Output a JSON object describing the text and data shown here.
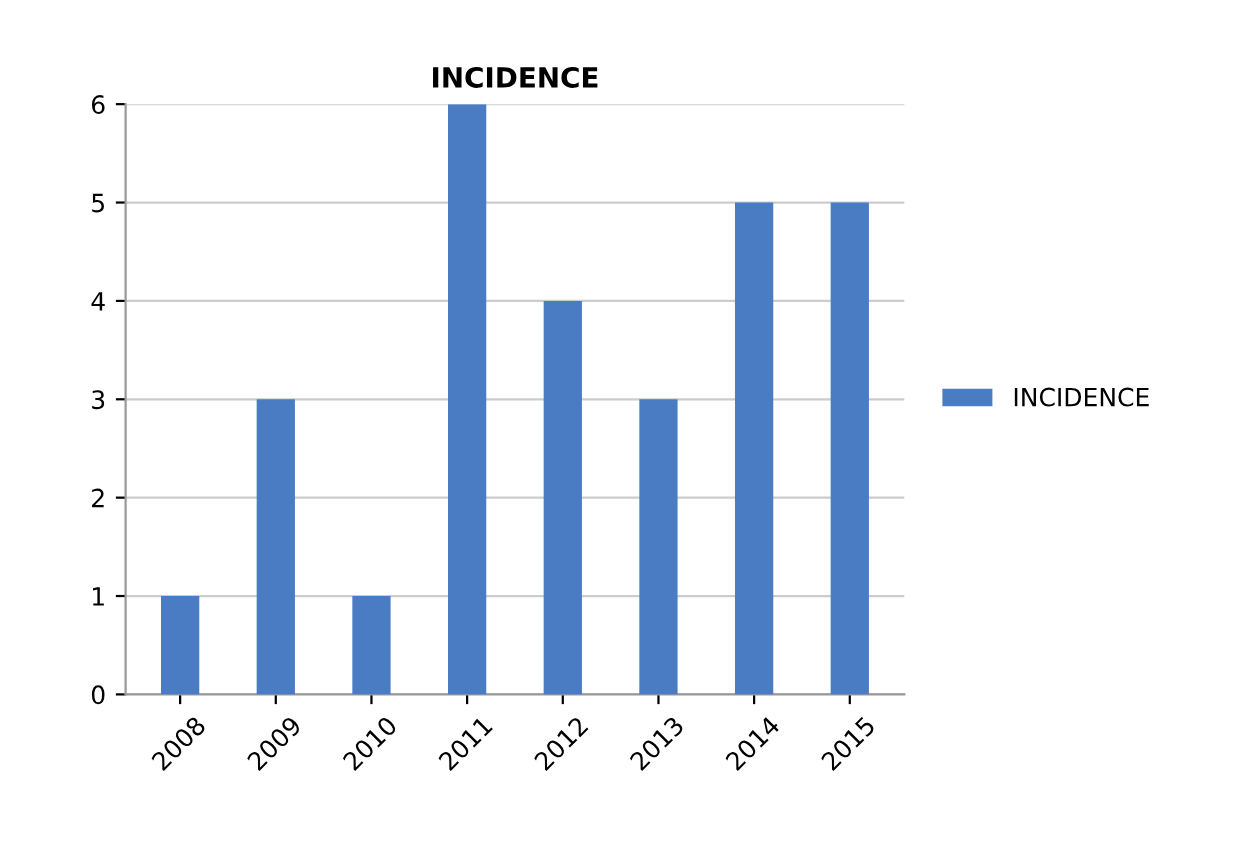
{
  "chart_data": {
    "type": "bar",
    "title": "INCIDENCE",
    "categories": [
      "2008",
      "2009",
      "2010",
      "2011",
      "2012",
      "2013",
      "2014",
      "2015"
    ],
    "series": [
      {
        "name": "INCIDENCE",
        "color": "#4a7cc4",
        "values": [
          1,
          3,
          1,
          6,
          4,
          3,
          5,
          5
        ]
      }
    ],
    "ylim": [
      0,
      6
    ],
    "yticks": [
      0,
      1,
      2,
      3,
      4,
      5,
      6
    ],
    "grid": "y",
    "legend": "right"
  }
}
